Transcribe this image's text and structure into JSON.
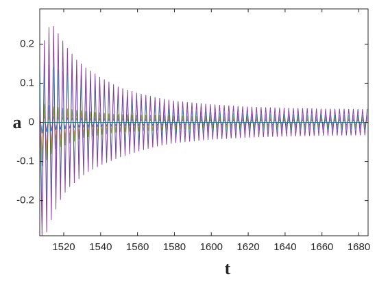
{
  "chart_data": {
    "type": "line",
    "title": "",
    "xlabel": "t",
    "ylabel": "a",
    "xlim": [
      1507,
      1685
    ],
    "ylim": [
      -0.29,
      0.29
    ],
    "x_ticks": [
      1520,
      1540,
      1560,
      1580,
      1600,
      1620,
      1640,
      1660,
      1680
    ],
    "y_ticks": [
      -0.2,
      -0.1,
      0,
      0.1,
      0.2
    ],
    "grid": false,
    "legend": "none",
    "oscillation_period": 2.5,
    "series": [
      {
        "color": "#7e2f8e",
        "envelope": {
          "t": [
            1507,
            1509,
            1511,
            1514,
            1518,
            1522,
            1527,
            1532,
            1540,
            1550,
            1560,
            1570,
            1580,
            1600,
            1620,
            1640,
            1660,
            1685
          ],
          "upper": [
            0.05,
            0.2,
            0.24,
            0.25,
            0.22,
            0.19,
            0.16,
            0.14,
            0.115,
            0.09,
            0.075,
            0.064,
            0.055,
            0.046,
            0.04,
            0.037,
            0.035,
            0.034
          ],
          "lower": [
            -0.29,
            -0.29,
            -0.28,
            -0.24,
            -0.2,
            -0.17,
            -0.15,
            -0.13,
            -0.11,
            -0.09,
            -0.075,
            -0.062,
            -0.053,
            -0.044,
            -0.039,
            -0.036,
            -0.034,
            -0.033
          ]
        }
      },
      {
        "color": "#4dbeee",
        "envelope": {
          "t": [
            1507,
            1510,
            1515,
            1520,
            1530,
            1540,
            1550,
            1560,
            1570,
            1580,
            1600,
            1620,
            1640,
            1660,
            1685
          ],
          "upper": [
            0.15,
            0.15,
            0.14,
            0.13,
            0.12,
            0.1,
            0.075,
            0.055,
            0.042,
            0.033,
            0.026,
            0.022,
            0.02,
            0.019,
            0.018
          ],
          "lower": [
            -0.27,
            -0.22,
            -0.17,
            -0.15,
            -0.12,
            -0.1,
            -0.075,
            -0.055,
            -0.042,
            -0.033,
            -0.026,
            -0.022,
            -0.02,
            -0.019,
            -0.018
          ]
        }
      },
      {
        "color": "#77ac30",
        "envelope": {
          "t": [
            1507,
            1515,
            1530,
            1550,
            1600,
            1685
          ],
          "upper": [
            0.05,
            0.04,
            0.03,
            0.02,
            0.016,
            0.014
          ],
          "lower": [
            -0.12,
            -0.07,
            -0.04,
            -0.025,
            -0.016,
            -0.014
          ]
        }
      },
      {
        "color": "#edb120",
        "envelope": {
          "t": [
            1507,
            1515,
            1530,
            1550,
            1600,
            1685
          ],
          "upper": [
            0.04,
            0.035,
            0.028,
            0.02,
            0.015,
            0.013
          ],
          "lower": [
            -0.1,
            -0.06,
            -0.035,
            -0.022,
            -0.015,
            -0.013
          ]
        }
      },
      {
        "color": "#d95319",
        "envelope": {
          "t": [
            1507,
            1515,
            1530,
            1550,
            1600,
            1685
          ],
          "upper": [
            0.045,
            0.035,
            0.025,
            0.018,
            0.012,
            0.01
          ],
          "lower": [
            -0.09,
            -0.05,
            -0.03,
            -0.02,
            -0.012,
            -0.01
          ]
        }
      },
      {
        "color": "#0072bd",
        "envelope": {
          "t": [
            1507,
            1515,
            1530,
            1550,
            1600,
            1685
          ],
          "upper": [
            0.02,
            0.015,
            0.01,
            0.008,
            0.006,
            0.006
          ],
          "lower": [
            -0.03,
            -0.02,
            -0.012,
            -0.008,
            -0.006,
            -0.006
          ]
        }
      }
    ]
  }
}
